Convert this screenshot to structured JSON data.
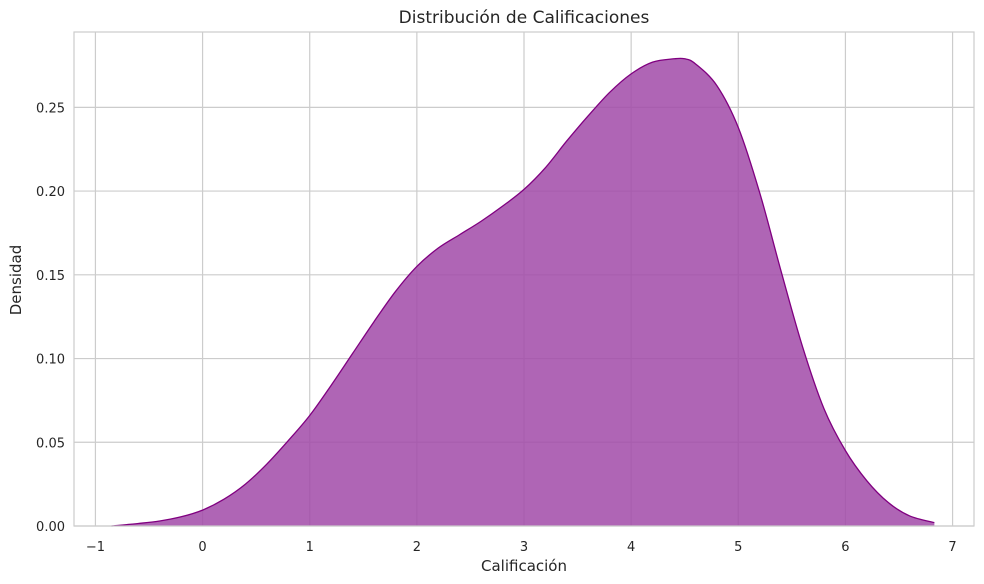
{
  "chart_data": {
    "type": "area",
    "title": "Distribución de Calificaciones",
    "xlabel": "Calificación",
    "ylabel": "Densidad",
    "xlim": [
      -1.2,
      7.2
    ],
    "ylim": [
      0,
      0.295
    ],
    "x_ticks": [
      -1,
      0,
      1,
      2,
      3,
      4,
      5,
      6,
      7
    ],
    "x_tick_labels": [
      "−1",
      "0",
      "1",
      "2",
      "3",
      "4",
      "5",
      "6",
      "7"
    ],
    "y_ticks": [
      0,
      0.05,
      0.1,
      0.15,
      0.2,
      0.25
    ],
    "y_tick_labels": [
      "0.00",
      "0.05",
      "0.10",
      "0.15",
      "0.20",
      "0.25"
    ],
    "grid": true,
    "fill_color": "#a14aa8",
    "line_color": "#800080",
    "series": [
      {
        "x": [
          -0.85,
          -0.6,
          -0.4,
          -0.2,
          0.0,
          0.2,
          0.4,
          0.6,
          0.8,
          1.0,
          1.2,
          1.4,
          1.6,
          1.8,
          2.0,
          2.2,
          2.4,
          2.6,
          2.8,
          3.0,
          3.2,
          3.4,
          3.6,
          3.8,
          4.0,
          4.2,
          4.4,
          4.5,
          4.6,
          4.8,
          5.0,
          5.2,
          5.4,
          5.6,
          5.8,
          6.0,
          6.2,
          6.4,
          6.6,
          6.83
        ],
        "values": [
          0.0,
          0.0015,
          0.003,
          0.0055,
          0.0095,
          0.016,
          0.025,
          0.037,
          0.051,
          0.066,
          0.084,
          0.103,
          0.122,
          0.14,
          0.155,
          0.166,
          0.174,
          0.182,
          0.191,
          0.201,
          0.214,
          0.23,
          0.245,
          0.259,
          0.27,
          0.277,
          0.279,
          0.279,
          0.276,
          0.263,
          0.238,
          0.199,
          0.152,
          0.107,
          0.07,
          0.045,
          0.027,
          0.014,
          0.006,
          0.002
        ]
      }
    ]
  }
}
